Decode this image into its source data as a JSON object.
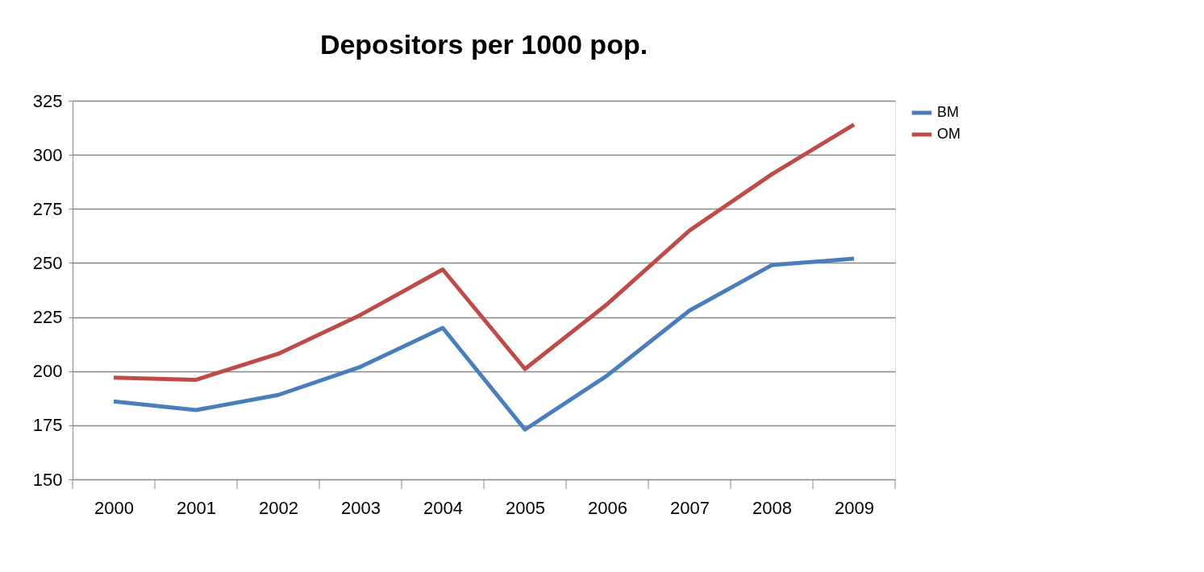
{
  "chart_data": {
    "type": "line",
    "title": "Depositors per 1000 pop.",
    "categories": [
      "2000",
      "2001",
      "2002",
      "2003",
      "2004",
      "2005",
      "2006",
      "2007",
      "2008",
      "2009"
    ],
    "series": [
      {
        "name": "BM",
        "color": "#4a7ebb",
        "values": [
          186,
          182,
          189,
          202,
          220,
          173,
          198,
          228,
          249,
          252
        ]
      },
      {
        "name": "OM",
        "color": "#be4b48",
        "values": [
          197,
          196,
          208,
          226,
          247,
          201,
          231,
          265,
          291,
          314
        ]
      }
    ],
    "ylim": [
      150,
      325
    ],
    "yticks": [
      150,
      175,
      200,
      225,
      250,
      275,
      300,
      325
    ],
    "grid": "y",
    "legend": "right",
    "marker": "none",
    "line_style": "solid"
  }
}
